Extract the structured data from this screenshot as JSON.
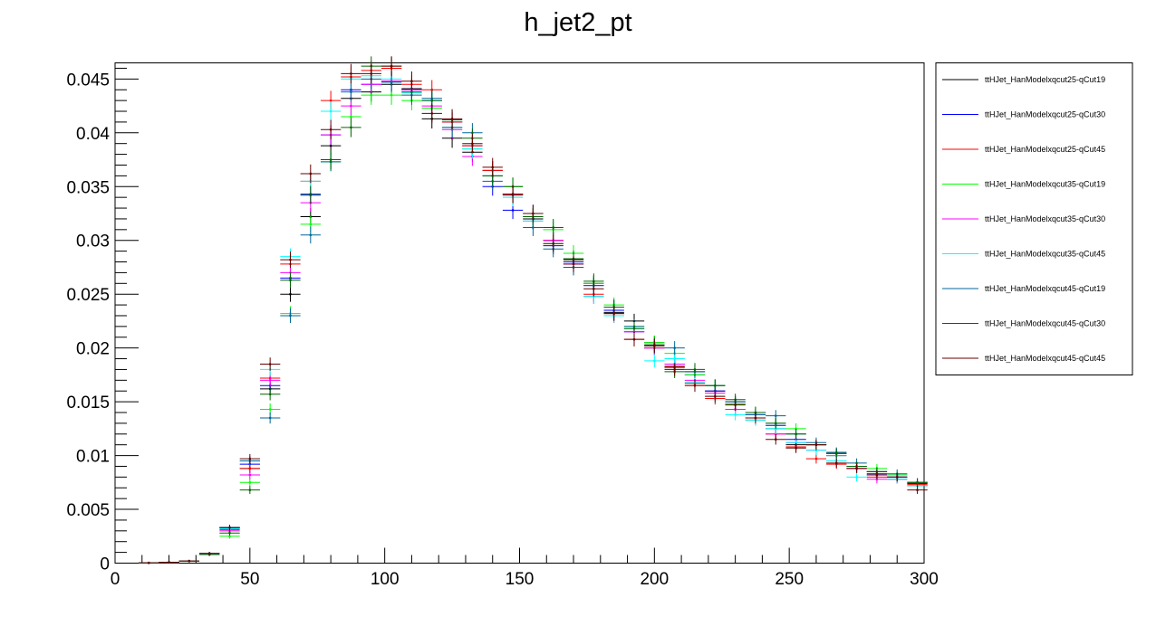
{
  "chart_data": {
    "type": "scatter",
    "title": "h_jet2_pt",
    "xlabel": "",
    "ylabel": "",
    "xlim": [
      0,
      300
    ],
    "ylim": [
      0,
      0.0465
    ],
    "grid": false,
    "legend_position": "top-right",
    "x_ticks": [
      0,
      50,
      100,
      150,
      200,
      250,
      300
    ],
    "x_tick_labels": [
      "0",
      "50",
      "100",
      "150",
      "200",
      "250",
      "300"
    ],
    "y_ticks": [
      0,
      0.005,
      0.01,
      0.015,
      0.02,
      0.025,
      0.03,
      0.035,
      0.04,
      0.045
    ],
    "y_tick_labels": [
      "0",
      "0.005",
      "0.01",
      "0.015",
      "0.02",
      "0.025",
      "0.03",
      "0.035",
      "0.04",
      "0.045"
    ],
    "x": [
      12.5,
      20,
      27.5,
      35,
      42.5,
      50,
      57.5,
      65,
      72.5,
      80,
      87.5,
      95,
      102.5,
      110,
      117.5,
      125,
      132.5,
      140,
      147.5,
      155,
      162.5,
      170,
      177.5,
      185,
      192.5,
      200,
      207.5,
      215,
      222.5,
      230,
      237.5,
      245,
      252.5,
      260,
      267.5,
      275,
      282.5,
      290,
      297.5
    ],
    "series": [
      {
        "name": "ttHJet_HanModelxqcut25-qCut19",
        "color": "#000000",
        "values": [
          2e-05,
          8e-05,
          0.0002,
          0.0008,
          0.0033,
          0.0088,
          0.0162,
          0.025,
          0.0322,
          0.0388,
          0.0432,
          0.0438,
          0.0445,
          0.0441,
          0.0413,
          0.0395,
          0.0382,
          0.0365,
          0.0343,
          0.032,
          0.03,
          0.0282,
          0.026,
          0.0233,
          0.0225,
          0.0205,
          0.0182,
          0.0178,
          0.016,
          0.015,
          0.014,
          0.0125,
          0.011,
          0.011,
          0.0102,
          0.0088,
          0.0085,
          0.008,
          0.0072
        ]
      },
      {
        "name": "ttHJet_HanModelxqcut25-qCut30",
        "color": "#0000ff",
        "values": [
          2e-05,
          8e-05,
          0.0002,
          0.0008,
          0.0033,
          0.0092,
          0.0165,
          0.0265,
          0.0343,
          0.0398,
          0.044,
          0.0445,
          0.0448,
          0.044,
          0.043,
          0.041,
          0.0388,
          0.035,
          0.0328,
          0.0325,
          0.0295,
          0.028,
          0.0258,
          0.0235,
          0.0215,
          0.02,
          0.0185,
          0.0175,
          0.016,
          0.0148,
          0.0138,
          0.0128,
          0.0115,
          0.011,
          0.01,
          0.009,
          0.0083,
          0.008,
          0.0074
        ]
      },
      {
        "name": "ttHJet_HanModelxqcut25-qCut45",
        "color": "#ff0000",
        "values": [
          3e-05,
          8e-05,
          0.0002,
          0.0008,
          0.0031,
          0.0088,
          0.0172,
          0.0278,
          0.0355,
          0.043,
          0.0452,
          0.0458,
          0.046,
          0.0445,
          0.044,
          0.041,
          0.0388,
          0.0365,
          0.0342,
          0.0322,
          0.03,
          0.0275,
          0.025,
          0.0232,
          0.0208,
          0.02,
          0.0183,
          0.0167,
          0.0153,
          0.0143,
          0.0133,
          0.012,
          0.0108,
          0.0097,
          0.0092,
          0.0088,
          0.008,
          0.0078,
          0.0073
        ]
      },
      {
        "name": "ttHJet_HanModelxqcut35-qCut19",
        "color": "#00ff00",
        "values": [
          2e-05,
          6e-05,
          0.0002,
          0.0008,
          0.0025,
          0.0075,
          0.0143,
          0.0232,
          0.0315,
          0.0373,
          0.0415,
          0.0435,
          0.0435,
          0.043,
          0.0423,
          0.0405,
          0.0385,
          0.036,
          0.035,
          0.0322,
          0.031,
          0.0288,
          0.026,
          0.024,
          0.022,
          0.0205,
          0.0195,
          0.0175,
          0.0165,
          0.0148,
          0.014,
          0.013,
          0.0125,
          0.011,
          0.01,
          0.009,
          0.0088,
          0.0082,
          0.0075
        ]
      },
      {
        "name": "ttHJet_HanModelxqcut35-qCut30",
        "color": "#ff00ff",
        "values": [
          2e-05,
          7e-05,
          0.0002,
          0.0008,
          0.003,
          0.0082,
          0.017,
          0.027,
          0.0335,
          0.0398,
          0.0425,
          0.0445,
          0.0448,
          0.044,
          0.0425,
          0.0403,
          0.0378,
          0.036,
          0.0343,
          0.0318,
          0.03,
          0.0278,
          0.0248,
          0.023,
          0.0215,
          0.02,
          0.0185,
          0.017,
          0.0158,
          0.0143,
          0.0135,
          0.012,
          0.0112,
          0.0105,
          0.0095,
          0.0088,
          0.0078,
          0.0078,
          0.0075
        ]
      },
      {
        "name": "ttHJet_HanModelxqcut35-qCut45",
        "color": "#00ffff",
        "values": [
          2e-05,
          8e-05,
          0.0002,
          0.0009,
          0.0032,
          0.0095,
          0.018,
          0.0285,
          0.0355,
          0.042,
          0.045,
          0.0453,
          0.045,
          0.0437,
          0.043,
          0.0405,
          0.0385,
          0.036,
          0.034,
          0.0318,
          0.0297,
          0.0275,
          0.0248,
          0.023,
          0.0218,
          0.0188,
          0.019,
          0.0168,
          0.0155,
          0.0138,
          0.0133,
          0.0125,
          0.0112,
          0.0105,
          0.0095,
          0.008,
          0.0082,
          0.0078,
          0.0072
        ]
      },
      {
        "name": "ttHJet_HanModelxqcut45-qCut19",
        "color": "#006699",
        "values": [
          2e-05,
          8e-05,
          0.0002,
          0.0009,
          0.0033,
          0.0095,
          0.0135,
          0.023,
          0.0305,
          0.0373,
          0.0438,
          0.045,
          0.0447,
          0.0435,
          0.0432,
          0.0405,
          0.04,
          0.0355,
          0.0343,
          0.0312,
          0.0292,
          0.0275,
          0.0258,
          0.0238,
          0.022,
          0.0202,
          0.02,
          0.0178,
          0.0165,
          0.015,
          0.0138,
          0.0137,
          0.012,
          0.0112,
          0.0103,
          0.0093,
          0.0085,
          0.0083,
          0.0075
        ]
      },
      {
        "name": "ttHJet_HanModelxqcut45-qCut30",
        "color": "#006600",
        "values": [
          2e-05,
          7e-05,
          0.0002,
          0.0008,
          0.0028,
          0.0068,
          0.0157,
          0.0263,
          0.0342,
          0.0375,
          0.0405,
          0.0462,
          0.0462,
          0.0438,
          0.043,
          0.0412,
          0.0395,
          0.036,
          0.035,
          0.0322,
          0.0312,
          0.0283,
          0.0262,
          0.0238,
          0.0218,
          0.0203,
          0.0178,
          0.018,
          0.0165,
          0.0152,
          0.014,
          0.013,
          0.012,
          0.011,
          0.0102,
          0.009,
          0.0085,
          0.008,
          0.0075
        ]
      },
      {
        "name": "ttHJet_HanModelxqcut45-qCut45",
        "color": "#660000",
        "values": [
          3e-05,
          8e-05,
          0.0002,
          0.0009,
          0.0033,
          0.0097,
          0.0185,
          0.0282,
          0.0362,
          0.0403,
          0.0455,
          0.0455,
          0.0462,
          0.0448,
          0.0418,
          0.0413,
          0.039,
          0.0368,
          0.0343,
          0.0325,
          0.0297,
          0.0278,
          0.0255,
          0.0232,
          0.0208,
          0.0202,
          0.018,
          0.0165,
          0.0155,
          0.0147,
          0.0135,
          0.0115,
          0.0107,
          0.011,
          0.0093,
          0.0088,
          0.0082,
          0.008,
          0.0068
        ]
      }
    ]
  }
}
